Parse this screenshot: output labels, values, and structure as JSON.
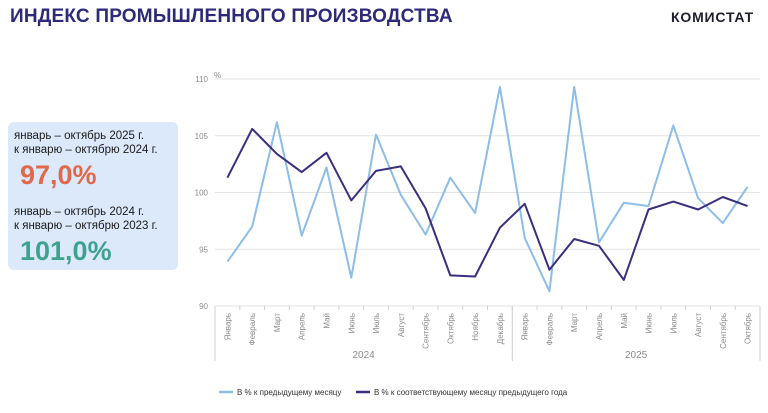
{
  "header": {
    "title": "ИНДЕКС ПРОМЫШЛЕННОГО ПРОИЗВОДСТВА",
    "logo": "КОМИСТАТ"
  },
  "summary": {
    "block1": {
      "line1": "январь – октябрь 2025 г.",
      "line2": "к январю – октябрю 2024 г.",
      "value": "97,0%",
      "color": "#e0684b"
    },
    "block2": {
      "line1": "январь – октябрь 2024 г.",
      "line2": "к январю – октябрю 2023 г.",
      "value": "101,0%",
      "color": "#3fa28f"
    },
    "panel_color": "#dbe9fb"
  },
  "chart_data": {
    "type": "line",
    "ylabel": "%",
    "ylim": [
      90,
      110
    ],
    "yticks": [
      90,
      95,
      100,
      105,
      110
    ],
    "categories": [
      "Январь",
      "Февраль",
      "Март",
      "Апрель",
      "Май",
      "Июнь",
      "Июль",
      "Август",
      "Сентябрь",
      "Октябрь",
      "Ноябрь",
      "Декабрь",
      "Январь",
      "Февраль",
      "Март",
      "Апрель",
      "Май",
      "Июнь",
      "Июль",
      "Август",
      "Сентябрь",
      "Октябрь"
    ],
    "year_groups": [
      {
        "label": "2024",
        "start": 0,
        "end": 11
      },
      {
        "label": "2025",
        "start": 12,
        "end": 21
      }
    ],
    "grid": true,
    "legend_position": "bottom",
    "series": [
      {
        "name": "В % к предыдущему месяцу",
        "color": "#8dbde8",
        "values": [
          93.9,
          97.0,
          106.2,
          96.2,
          102.2,
          92.5,
          105.1,
          99.8,
          96.3,
          101.3,
          98.2,
          109.3,
          96.0,
          91.3,
          109.3,
          95.6,
          99.1,
          98.8,
          105.9,
          99.5,
          97.3,
          100.5
        ]
      },
      {
        "name": "В % к соответствующему месяцу предыдущего года",
        "color": "#3a2f7d",
        "values": [
          101.3,
          105.6,
          103.4,
          101.8,
          103.5,
          99.3,
          101.9,
          102.3,
          98.6,
          92.7,
          92.6,
          96.9,
          99.0,
          93.2,
          95.9,
          95.3,
          92.3,
          98.5,
          99.2,
          98.5,
          99.6,
          98.8
        ]
      }
    ]
  }
}
